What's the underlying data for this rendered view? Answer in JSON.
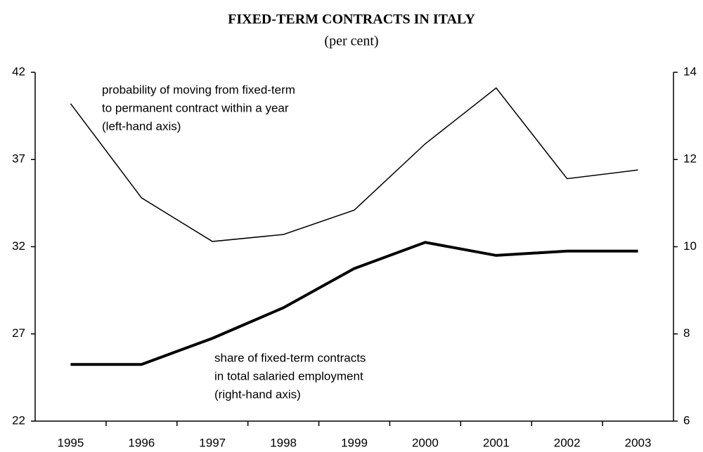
{
  "chart_data": {
    "type": "line",
    "title": "FIXED-TERM CONTRACTS IN ITALY",
    "subtitle": "(per cent)",
    "categories": [
      "1995",
      "1996",
      "1997",
      "1998",
      "1999",
      "2000",
      "2001",
      "2002",
      "2003"
    ],
    "ylim": [
      22,
      42
    ],
    "yticks": [
      22,
      27,
      32,
      37,
      42
    ],
    "y2lim": [
      6,
      14
    ],
    "y2ticks": [
      6,
      8,
      10,
      12,
      14
    ],
    "series": [
      {
        "label": [
          "probability of moving from fixed-term",
          "to permanent contract within a year",
          "(left-hand axis)"
        ],
        "color": "#000000",
        "width": 1.5,
        "values": [
          40.2,
          34.8,
          32.3,
          32.7,
          34.1,
          37.9,
          41.1,
          35.9,
          36.4
        ]
      },
      {
        "label": [
          "share of fixed-term contracts",
          "in total salaried employment",
          "(right-hand axis)"
        ],
        "color": "#000000",
        "width": 4,
        "axis": "y2",
        "values": [
          7.3,
          7.3,
          7.9,
          8.6,
          9.5,
          10.1,
          9.8,
          9.9,
          9.9
        ]
      }
    ]
  }
}
